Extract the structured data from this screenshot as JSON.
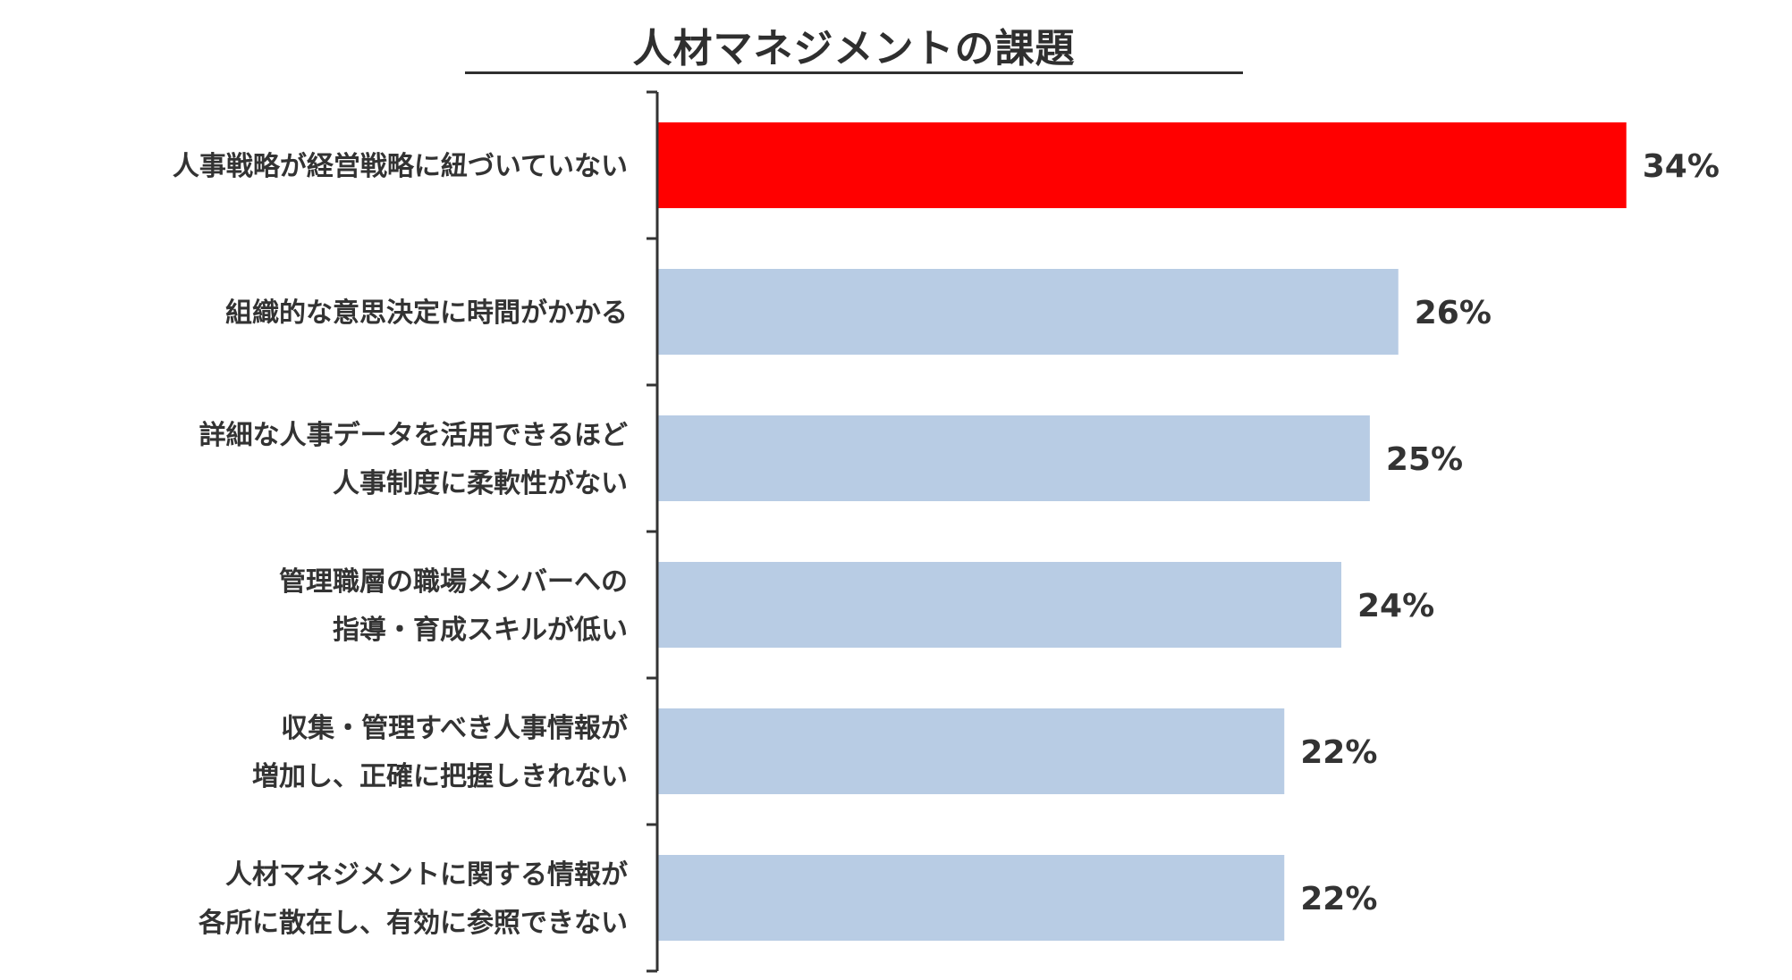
{
  "chart_data": {
    "type": "bar",
    "orientation": "horizontal",
    "title": "人材マネジメントの課題",
    "categories": [
      [
        "人事戦略が経営戦略に紐づいていない"
      ],
      [
        "組織的な意思決定に時間がかかる"
      ],
      [
        "詳細な人事データを活用できるほど",
        "人事制度に柔軟性がない"
      ],
      [
        "管理職層の職場メンバーへの",
        "指導・育成スキルが低い"
      ],
      [
        "収集・管理すべき人事情報が",
        "増加し、正確に把握しきれない"
      ],
      [
        "人材マネジメントに関する情報が",
        "各所に散在し、有効に参照できない"
      ]
    ],
    "values": [
      34,
      26,
      25,
      24,
      22,
      22
    ],
    "value_labels": [
      "34%",
      "26%",
      "25%",
      "24%",
      "22%",
      "22%"
    ],
    "xlim": [
      0,
      40
    ],
    "grid": false,
    "colors": {
      "highlight": "#ff0000",
      "default": "#b8cce4",
      "axis": "#333333",
      "text": "#333333"
    },
    "highlight_index": 0
  }
}
